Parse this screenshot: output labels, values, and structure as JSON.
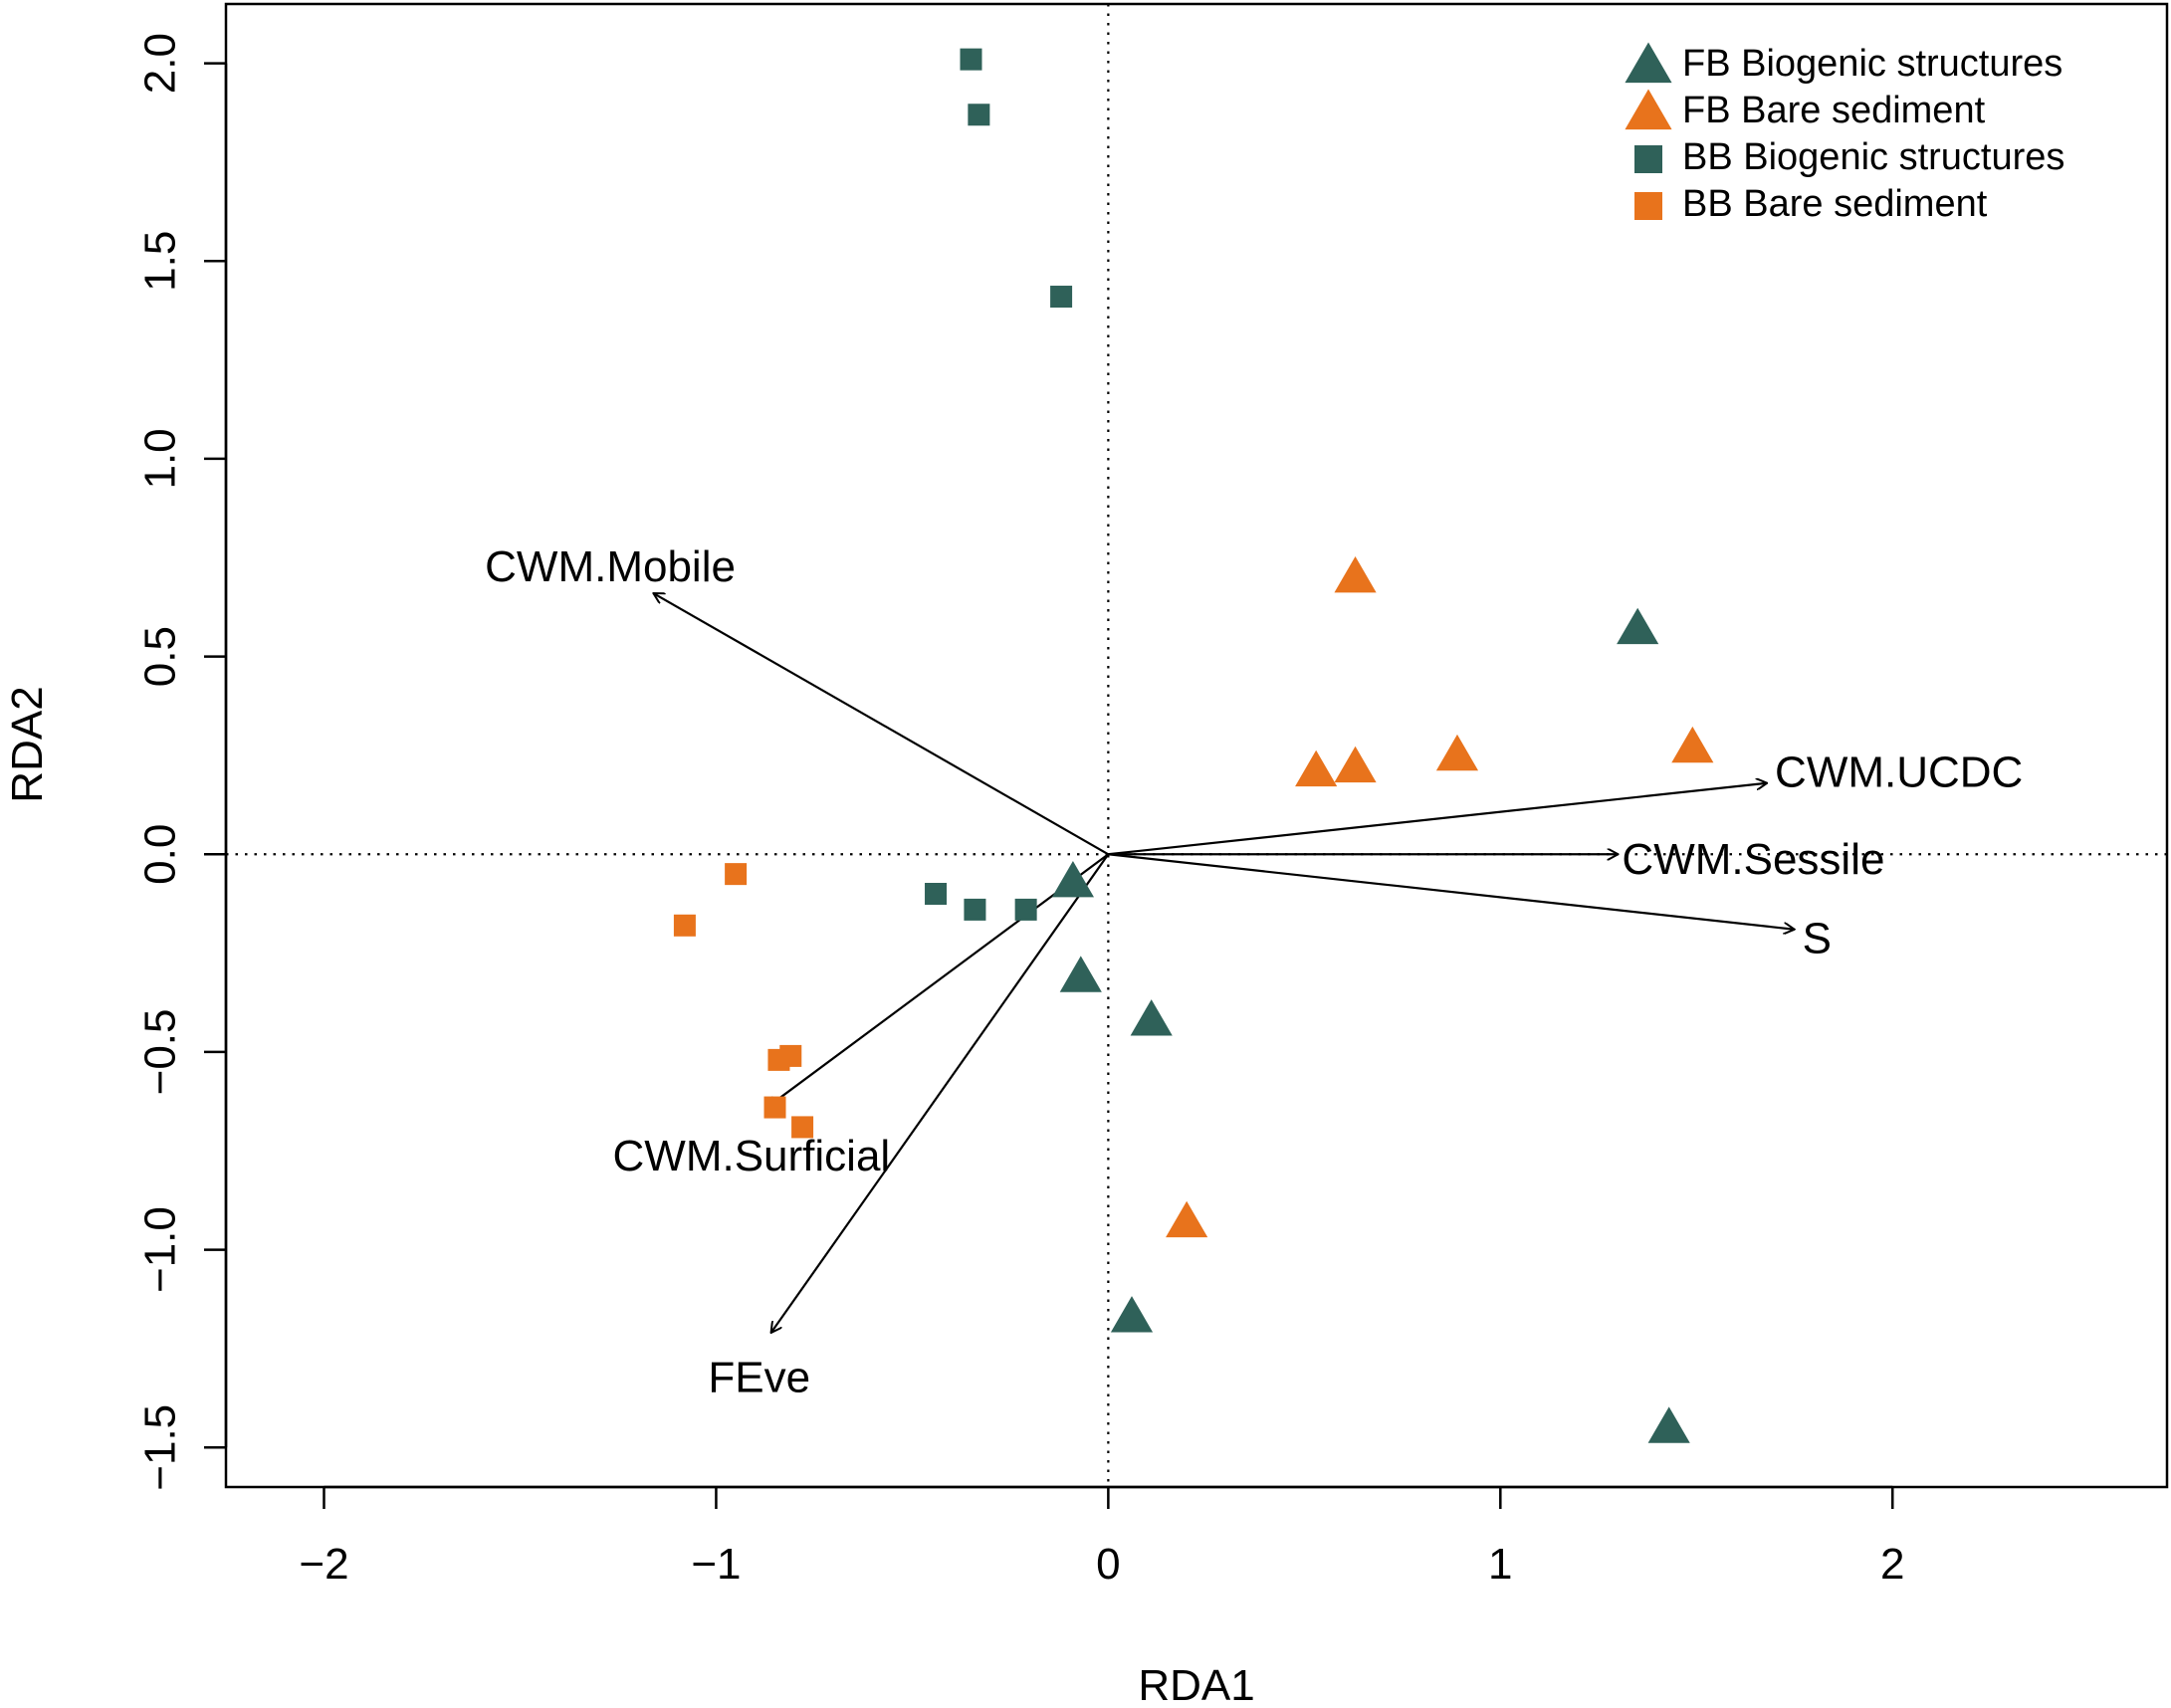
{
  "chart_data": {
    "type": "scatter",
    "title": "",
    "xlabel": "RDA1",
    "ylabel": "RDA2",
    "xlim": [
      -2.25,
      2.7
    ],
    "ylim": [
      -1.6,
      2.15
    ],
    "xticks": [
      -2,
      -1,
      0,
      1,
      2
    ],
    "xtick_labels": [
      "−2",
      "−1",
      "0",
      "1",
      "2"
    ],
    "yticks": [
      -1.5,
      -1.0,
      -0.5,
      0.0,
      0.5,
      1.0,
      1.5,
      2.0
    ],
    "ytick_labels": [
      "−1.5",
      "−1.0",
      "−0.5",
      "0.0",
      "0.5",
      "1.0",
      "1.5",
      "2.0"
    ],
    "reference_lines": {
      "x": 0,
      "y": 0,
      "style": "dotted"
    },
    "legend_position": "top-right",
    "colors": {
      "green": "#2f6159",
      "orange": "#e8731c"
    },
    "series": [
      {
        "name": "FB Biogenic structures",
        "marker": "triangle",
        "color": "#2f6159",
        "points": [
          [
            1.35,
            0.57
          ],
          [
            -0.09,
            -0.07
          ],
          [
            -0.07,
            -0.31
          ],
          [
            0.11,
            -0.42
          ],
          [
            0.06,
            -1.17
          ],
          [
            1.43,
            -1.45
          ]
        ]
      },
      {
        "name": "FB Bare sediment",
        "marker": "triangle",
        "color": "#e8731c",
        "points": [
          [
            0.63,
            0.7
          ],
          [
            0.53,
            0.21
          ],
          [
            0.63,
            0.22
          ],
          [
            0.89,
            0.25
          ],
          [
            1.49,
            0.27
          ],
          [
            0.2,
            -0.93
          ]
        ]
      },
      {
        "name": "BB Biogenic structures",
        "marker": "square",
        "color": "#2f6159",
        "points": [
          [
            -0.35,
            2.01
          ],
          [
            -0.33,
            1.87
          ],
          [
            -0.12,
            1.41
          ],
          [
            -0.44,
            -0.1
          ],
          [
            -0.34,
            -0.14
          ],
          [
            -0.21,
            -0.14
          ]
        ]
      },
      {
        "name": "BB Bare sediment",
        "marker": "square",
        "color": "#e8731c",
        "points": [
          [
            -0.95,
            -0.05
          ],
          [
            -1.08,
            -0.18
          ],
          [
            -0.81,
            -0.51
          ],
          [
            -0.84,
            -0.52
          ],
          [
            -0.85,
            -0.64
          ],
          [
            -0.78,
            -0.69
          ]
        ]
      }
    ],
    "vectors": [
      {
        "name": "CWM.Mobile",
        "end": [
          -1.16,
          0.66
        ],
        "label_at": [
          -1.27,
          0.72
        ],
        "anchor": "middle"
      },
      {
        "name": "CWM.UCDC",
        "end": [
          1.68,
          0.18
        ],
        "label_at": [
          1.7,
          0.2
        ],
        "anchor": "start"
      },
      {
        "name": "CWM.Sessile",
        "end": [
          1.3,
          0.0
        ],
        "label_at": [
          1.31,
          -0.02
        ],
        "anchor": "start"
      },
      {
        "name": "S",
        "end": [
          1.75,
          -0.19
        ],
        "label_at": [
          1.77,
          -0.22
        ],
        "anchor": "start"
      },
      {
        "name": "CWM.Surficial",
        "end": [
          -0.87,
          -0.64
        ],
        "label_at": [
          -0.91,
          -0.77
        ],
        "anchor": "middle"
      },
      {
        "name": "FEve",
        "end": [
          -0.86,
          -1.21
        ],
        "label_at": [
          -0.89,
          -1.33
        ],
        "anchor": "middle"
      }
    ]
  }
}
